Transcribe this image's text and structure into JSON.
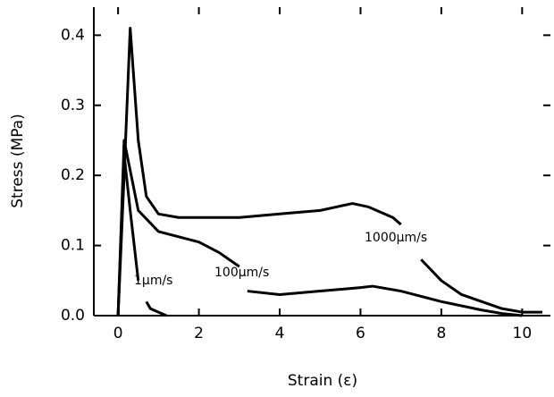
{
  "chart_data": {
    "type": "line",
    "xlabel": "Strain (ε)",
    "ylabel": "Stress (MPa)",
    "xlim": [
      -0.6,
      10.7
    ],
    "ylim": [
      0,
      0.44
    ],
    "xticks": [
      0,
      2,
      4,
      6,
      8,
      10
    ],
    "yticks": [
      {
        "value": 0,
        "label": "0.0"
      },
      0.1,
      0.2,
      0.3,
      0.4
    ],
    "series": [
      {
        "name": "1000μm/s",
        "color": "#000000",
        "x": [
          0,
          0.15,
          0.3,
          0.5,
          0.7,
          1,
          1.5,
          2,
          3,
          4,
          5,
          5.8,
          6.2,
          6.8,
          7,
          7.2,
          7.5,
          8,
          8.5,
          9,
          9.5,
          10,
          10.5
        ],
        "values": [
          0,
          0.2,
          0.41,
          0.25,
          0.17,
          0.145,
          0.14,
          0.14,
          0.14,
          0.145,
          0.15,
          0.16,
          0.155,
          0.14,
          0.13,
          null,
          0.08,
          0.05,
          0.03,
          0.02,
          0.01,
          0.005,
          0.005
        ]
      },
      {
        "name": "100μm/s",
        "color": "#000000",
        "x": [
          0,
          0.15,
          0.5,
          1,
          2,
          2.5,
          3,
          3.1,
          3.2,
          4,
          5,
          6,
          6.3,
          7,
          8,
          9,
          9.5,
          10
        ],
        "values": [
          0,
          0.25,
          0.15,
          0.12,
          0.105,
          0.09,
          0.07,
          null,
          0.035,
          0.03,
          0.035,
          0.04,
          0.042,
          0.035,
          0.02,
          0.008,
          0.003,
          0
        ]
      },
      {
        "name": "1μm/s",
        "color": "#000000",
        "x": [
          0,
          0.15,
          0.3,
          0.4,
          0.5,
          0.6,
          0.7,
          0.8,
          1.0,
          1.2
        ],
        "values": [
          0,
          0.23,
          0.15,
          0.1,
          0.05,
          null,
          0.02,
          0.01,
          0.005,
          0
        ]
      }
    ]
  }
}
